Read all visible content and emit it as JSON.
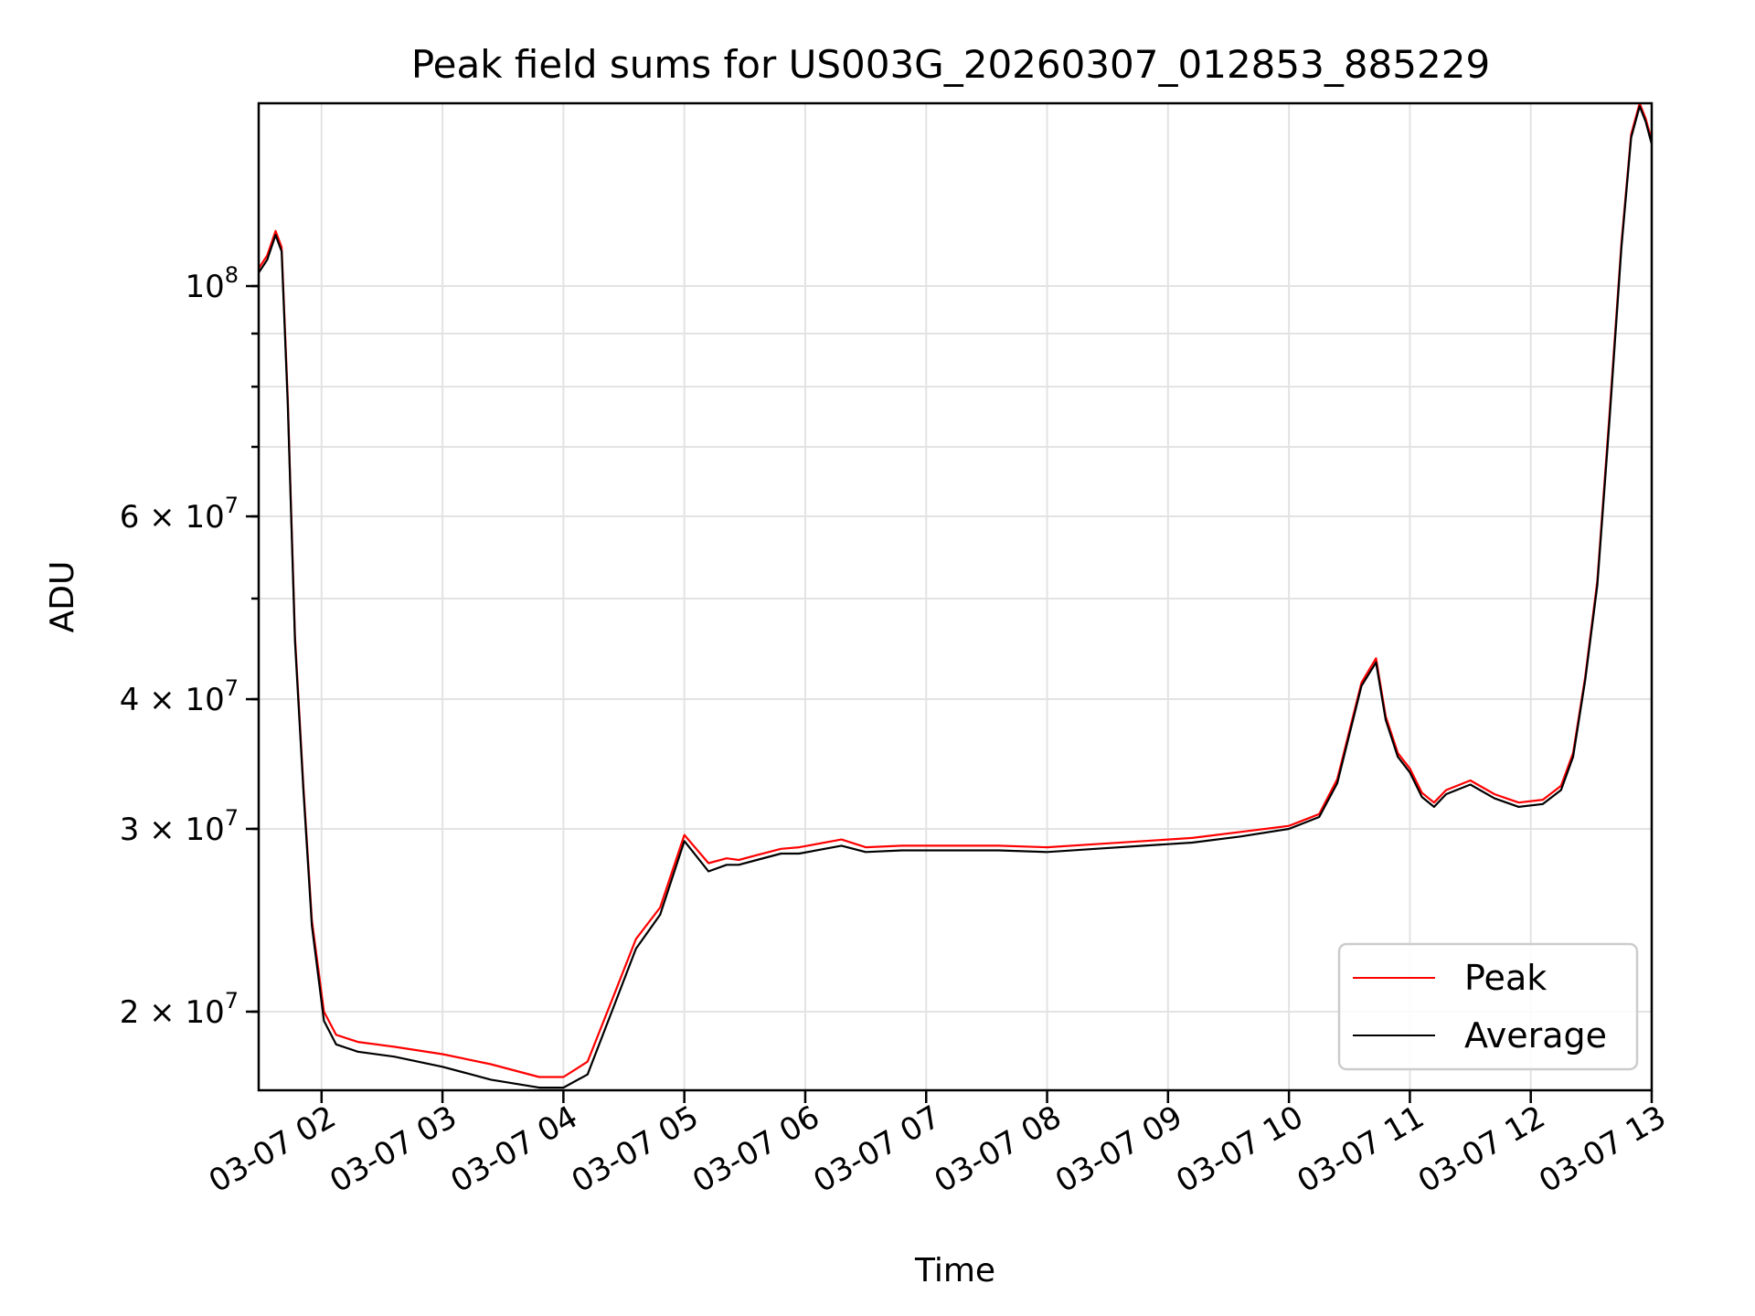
{
  "chart_data": {
    "type": "line",
    "title": "Peak field sums for US003G_20260307_012853_885229",
    "xlabel": "Time",
    "ylabel": "ADU",
    "yscale": "log",
    "xlim": [
      1.48,
      13.0
    ],
    "ylim": [
      16800000,
      150000000
    ],
    "grid": true,
    "legend_position": "lower-right",
    "x_ticks": [
      {
        "value": 2,
        "label": "03-07 02"
      },
      {
        "value": 3,
        "label": "03-07 03"
      },
      {
        "value": 4,
        "label": "03-07 04"
      },
      {
        "value": 5,
        "label": "03-07 05"
      },
      {
        "value": 6,
        "label": "03-07 06"
      },
      {
        "value": 7,
        "label": "03-07 07"
      },
      {
        "value": 8,
        "label": "03-07 08"
      },
      {
        "value": 9,
        "label": "03-07 09"
      },
      {
        "value": 10,
        "label": "03-07 10"
      },
      {
        "value": 11,
        "label": "03-07 11"
      },
      {
        "value": 12,
        "label": "03-07 12"
      },
      {
        "value": 13,
        "label": "03-07 13"
      }
    ],
    "y_major_ticks": [
      {
        "value": 20000000,
        "mant": "2",
        "exp": "7"
      },
      {
        "value": 30000000,
        "mant": "3",
        "exp": "7"
      },
      {
        "value": 40000000,
        "mant": "4",
        "exp": "7"
      },
      {
        "value": 60000000,
        "mant": "6",
        "exp": "7"
      },
      {
        "value": 100000000,
        "mant": "",
        "exp": "8"
      }
    ],
    "y_grid_values": [
      20000000,
      30000000,
      40000000,
      50000000,
      60000000,
      70000000,
      80000000,
      90000000,
      100000000
    ],
    "series": [
      {
        "name": "Peak",
        "color": "#ff0000",
        "x": [
          1.48,
          1.55,
          1.62,
          1.67,
          1.72,
          1.78,
          1.85,
          1.92,
          2.02,
          2.12,
          2.3,
          2.6,
          3.0,
          3.4,
          3.8,
          4.0,
          4.2,
          4.4,
          4.6,
          4.8,
          5.0,
          5.2,
          5.35,
          5.45,
          5.6,
          5.8,
          5.95,
          6.3,
          6.5,
          6.8,
          7.0,
          7.3,
          7.6,
          8.0,
          8.4,
          8.8,
          9.2,
          9.6,
          10.0,
          10.25,
          10.4,
          10.6,
          10.72,
          10.8,
          10.9,
          11.0,
          11.1,
          11.2,
          11.3,
          11.5,
          11.7,
          11.9,
          12.1,
          12.25,
          12.35,
          12.45,
          12.55,
          12.65,
          12.75,
          12.83,
          12.9,
          12.95,
          13.0
        ],
        "y": [
          104000000,
          107000000,
          113000000,
          109000000,
          78000000,
          46000000,
          33000000,
          24500000,
          20000000,
          19000000,
          18700000,
          18500000,
          18200000,
          17800000,
          17300000,
          17300000,
          17900000,
          20500000,
          23500000,
          25200000,
          29600000,
          27800000,
          28100000,
          28000000,
          28300000,
          28700000,
          28800000,
          29300000,
          28800000,
          28900000,
          28900000,
          28900000,
          28900000,
          28800000,
          29000000,
          29200000,
          29400000,
          29800000,
          30200000,
          31000000,
          33500000,
          41500000,
          43800000,
          38500000,
          35500000,
          34300000,
          32500000,
          31800000,
          32700000,
          33400000,
          32400000,
          31800000,
          32000000,
          33000000,
          35500000,
          42000000,
          52000000,
          75000000,
          110000000,
          140000000,
          150000000,
          145000000,
          138000000
        ]
      },
      {
        "name": "Average",
        "color": "#000000",
        "x": [
          1.48,
          1.55,
          1.62,
          1.67,
          1.72,
          1.78,
          1.85,
          1.92,
          2.02,
          2.12,
          2.3,
          2.6,
          3.0,
          3.4,
          3.8,
          4.0,
          4.2,
          4.4,
          4.6,
          4.8,
          5.0,
          5.2,
          5.35,
          5.45,
          5.6,
          5.8,
          5.95,
          6.3,
          6.5,
          6.8,
          7.0,
          7.3,
          7.6,
          8.0,
          8.4,
          8.8,
          9.2,
          9.6,
          10.0,
          10.25,
          10.4,
          10.6,
          10.72,
          10.8,
          10.9,
          11.0,
          11.1,
          11.2,
          11.3,
          11.5,
          11.7,
          11.9,
          12.1,
          12.25,
          12.35,
          12.45,
          12.55,
          12.65,
          12.75,
          12.83,
          12.9,
          12.95,
          13.0
        ],
        "y": [
          103000000,
          106000000,
          112000000,
          108000000,
          77000000,
          45500000,
          32700000,
          24200000,
          19600000,
          18600000,
          18300000,
          18100000,
          17700000,
          17200000,
          16900000,
          16900000,
          17400000,
          20000000,
          23000000,
          24800000,
          29200000,
          27300000,
          27700000,
          27700000,
          28000000,
          28400000,
          28400000,
          28900000,
          28500000,
          28600000,
          28600000,
          28600000,
          28600000,
          28500000,
          28700000,
          28900000,
          29100000,
          29500000,
          30000000,
          30800000,
          33200000,
          41200000,
          43400000,
          38200000,
          35200000,
          34000000,
          32200000,
          31500000,
          32400000,
          33100000,
          32100000,
          31500000,
          31700000,
          32700000,
          35200000,
          41700000,
          51500000,
          74000000,
          109000000,
          139000000,
          149000000,
          144000000,
          137000000
        ]
      }
    ]
  }
}
